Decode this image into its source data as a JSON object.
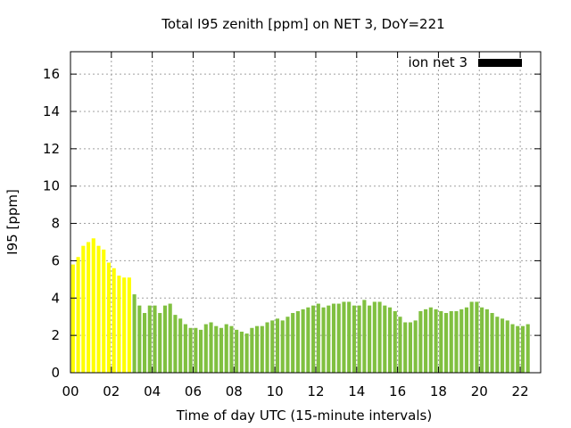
{
  "chart_data": {
    "type": "bar",
    "title": "Total I95 zenith [ppm] on NET 3, DoY=221",
    "xlabel": "Time of day UTC (15-minute intervals)",
    "ylabel": "I95 [ppm]",
    "xlim": [
      0,
      23
    ],
    "ylim": [
      0,
      17.2
    ],
    "x_ticks": [
      "00",
      "02",
      "04",
      "06",
      "08",
      "10",
      "12",
      "14",
      "16",
      "18",
      "20",
      "22"
    ],
    "y_ticks": [
      "0",
      "2",
      "4",
      "6",
      "8",
      "10",
      "12",
      "14",
      "16"
    ],
    "grid": true,
    "legend": {
      "position": "top-right",
      "entries": [
        {
          "label": "ion net 3",
          "color": "#000000"
        }
      ]
    },
    "series": [
      {
        "name": "ion net 3",
        "interval_hours": 0.25,
        "highlight_color": "#ffff00",
        "normal_color": "#80c040",
        "values": [
          5.8,
          6.2,
          6.8,
          7.0,
          7.2,
          6.8,
          6.6,
          5.9,
          5.6,
          5.2,
          5.1,
          5.1,
          4.2,
          3.6,
          3.2,
          3.6,
          3.6,
          3.2,
          3.6,
          3.7,
          3.1,
          2.9,
          2.6,
          2.4,
          2.4,
          2.3,
          2.6,
          2.7,
          2.5,
          2.4,
          2.6,
          2.5,
          2.3,
          2.2,
          2.1,
          2.4,
          2.5,
          2.5,
          2.7,
          2.8,
          2.9,
          2.8,
          3.0,
          3.2,
          3.3,
          3.4,
          3.5,
          3.6,
          3.7,
          3.5,
          3.6,
          3.7,
          3.7,
          3.8,
          3.8,
          3.6,
          3.6,
          3.9,
          3.6,
          3.8,
          3.8,
          3.6,
          3.5,
          3.3,
          3.0,
          2.7,
          2.7,
          2.8,
          3.3,
          3.4,
          3.5,
          3.4,
          3.3,
          3.2,
          3.3,
          3.3,
          3.4,
          3.5,
          3.8,
          3.8,
          3.5,
          3.4,
          3.2,
          3.0,
          2.9,
          2.8,
          2.6,
          2.5,
          2.5,
          2.6
        ],
        "highlight_count": 12
      }
    ]
  }
}
